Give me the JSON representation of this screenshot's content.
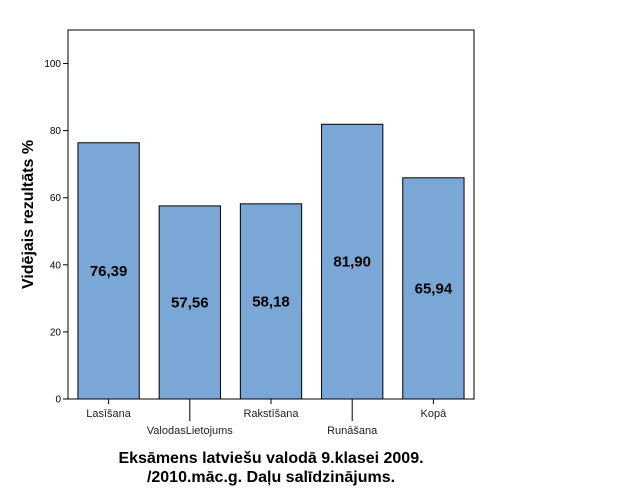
{
  "chart_data": {
    "type": "bar",
    "title_lines": [
      "Eksāmens latviešu valodā 9.klasei 2009.",
      "/2010.māc.g. Daļu salīdzinājums."
    ],
    "xlabel": "",
    "ylabel": "Vidējais rezultāts %",
    "ylim": [
      0,
      110
    ],
    "yticks": [
      0,
      20,
      40,
      60,
      80,
      100
    ],
    "categories": [
      "Lasīšana",
      "ValodasLietojums",
      "Rakstīšana",
      "Runāšana",
      "Kopā"
    ],
    "values": [
      76.39,
      57.56,
      58.18,
      81.9,
      65.94
    ],
    "value_labels": [
      "76,39",
      "57,56",
      "58,18",
      "81,90",
      "65,94"
    ],
    "bar_color": "#7ba7d7",
    "bar_edge_color": "#000000",
    "grid": false,
    "legend": "none"
  }
}
